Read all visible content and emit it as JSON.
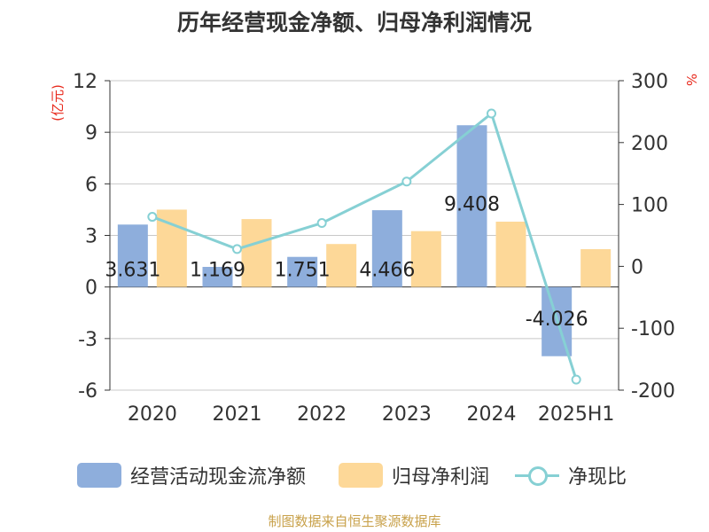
{
  "title": "历年经营现金净额、归母净利润情况",
  "source": "制图数据来自恒生聚源数据库",
  "colors": {
    "cash_flow": "#8eaedc",
    "net_profit": "#fdd898",
    "ratio": "#86d0d4",
    "left_unit": "#e8291c",
    "right_unit": "#e8291c",
    "source": "#c8a14a"
  },
  "legend": [
    {
      "label": "经营活动现金流净额",
      "icon": "bar-swatch-blue"
    },
    {
      "label": "归母净利润",
      "icon": "bar-swatch-orange"
    },
    {
      "label": "净现比",
      "icon": "line-circle-marker"
    }
  ],
  "chart_data": {
    "type": "bar",
    "categories": [
      "2020",
      "2021",
      "2022",
      "2023",
      "2024",
      "2025H1"
    ],
    "series": [
      {
        "name": "经营活动现金流净额",
        "type": "bar",
        "axis": "left",
        "values": [
          3.631,
          1.169,
          1.751,
          4.466,
          9.408,
          -4.026
        ],
        "labels": [
          "3.631",
          "1.169",
          "1.751",
          "4.466",
          "9.408",
          "-4.026"
        ]
      },
      {
        "name": "归母净利润",
        "type": "bar",
        "axis": "left",
        "values": [
          4.5,
          3.95,
          2.5,
          3.25,
          3.8,
          2.2
        ]
      },
      {
        "name": "净现比",
        "type": "line",
        "axis": "right",
        "values": [
          80,
          28,
          70,
          137,
          247,
          -183
        ]
      }
    ],
    "left_axis": {
      "unit": "(亿元)",
      "ylim": [
        -6,
        12
      ],
      "ticks": [
        -6,
        -3,
        0,
        3,
        6,
        9,
        12
      ]
    },
    "right_axis": {
      "unit": "%",
      "ylim": [
        -200,
        300
      ],
      "ticks": [
        -200,
        -100,
        0,
        100,
        200,
        300
      ]
    },
    "grid": true,
    "legend_position": "bottom"
  }
}
